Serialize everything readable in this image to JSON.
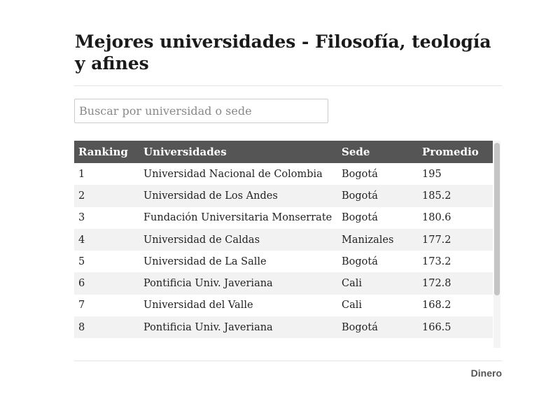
{
  "header": {
    "title": "Mejores universidades - Filosofía, teología y afines",
    "search_placeholder": "Buscar por universidad o sede"
  },
  "table": {
    "columns": [
      "Ranking",
      "Universidades",
      "Sede",
      "Promedio"
    ],
    "rows": [
      [
        1,
        "Universidad Nacional de Colombia",
        "Bogotá",
        195
      ],
      [
        2,
        "Universidad de Los Andes",
        "Bogotá",
        185.2
      ],
      [
        3,
        "Fundación Universitaria Monserrate",
        "Bogotá",
        180.6
      ],
      [
        4,
        "Universidad de Caldas",
        "Manizales",
        177.2
      ],
      [
        5,
        "Universidad de La Salle",
        "Bogotá",
        173.2
      ],
      [
        6,
        "Pontificia Univ. Javeriana",
        "Cali",
        172.8
      ],
      [
        7,
        "Universidad del Valle",
        "Cali",
        168.2
      ],
      [
        8,
        "Pontificia Univ. Javeriana",
        "Bogotá",
        166.5
      ]
    ]
  },
  "footer": {
    "source": "Dinero"
  }
}
